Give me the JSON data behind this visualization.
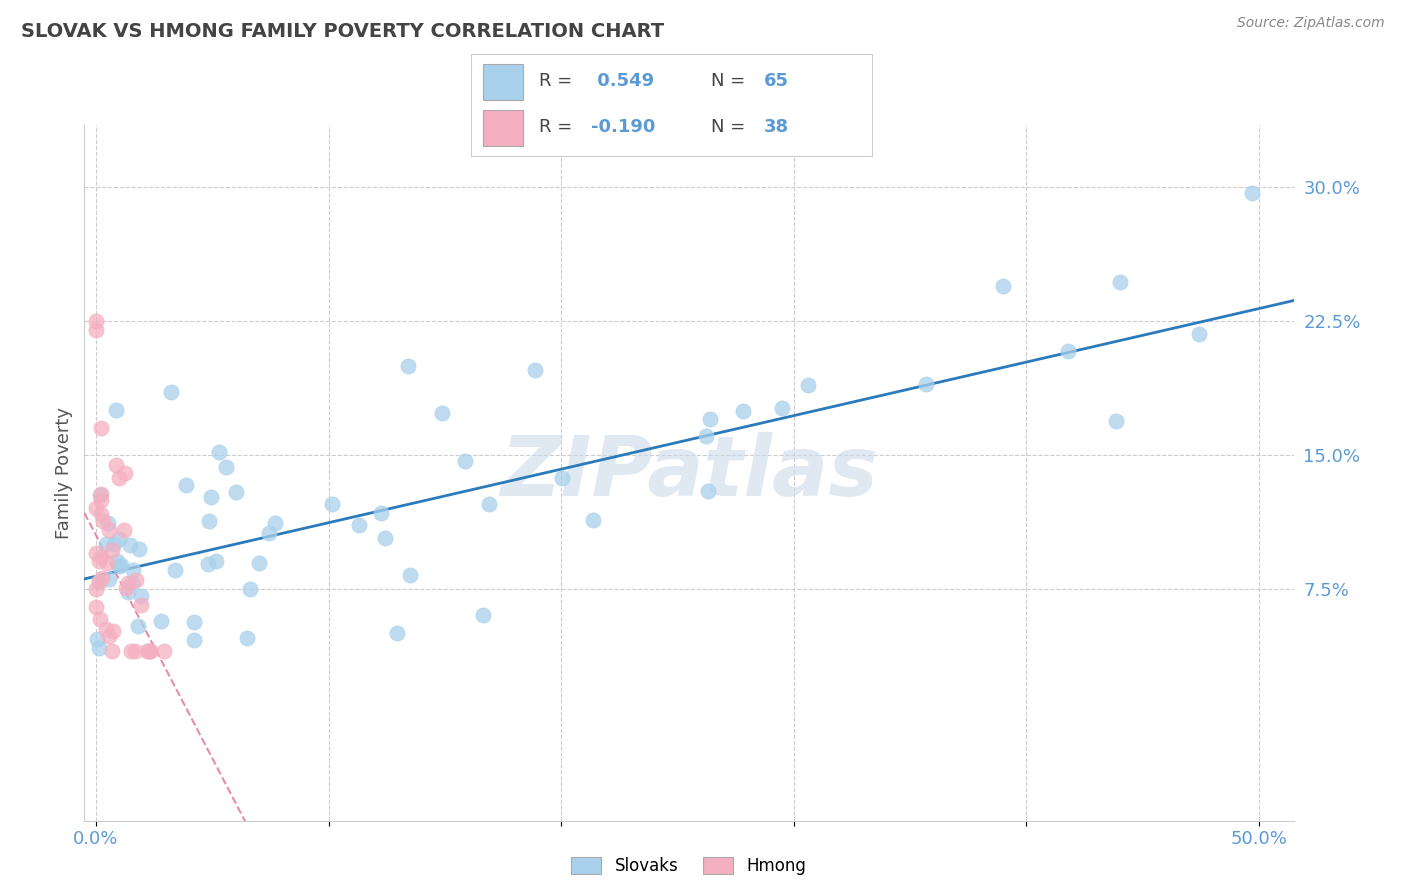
{
  "title": "SLOVAK VS HMONG FAMILY POVERTY CORRELATION CHART",
  "source": "Source: ZipAtlas.com",
  "ylabel": "Family Poverty",
  "x_ticks": [
    0.0,
    0.1,
    0.2,
    0.3,
    0.4,
    0.5
  ],
  "x_tick_labels": [
    "0.0%",
    "",
    "",
    "",
    "",
    "50.0%"
  ],
  "y_ticks": [
    0.075,
    0.15,
    0.225,
    0.3
  ],
  "y_tick_labels": [
    "7.5%",
    "15.0%",
    "22.5%",
    "30.0%"
  ],
  "xlim": [
    -0.005,
    0.515
  ],
  "ylim": [
    -0.055,
    0.335
  ],
  "slovak_color": "#a8d0eb",
  "hmong_color": "#f4afc0",
  "slovak_line_color": "#2b7bba",
  "hmong_line_color": "#e07090",
  "r_slovak": 0.549,
  "n_slovak": 65,
  "r_hmong": -0.19,
  "n_hmong": 38,
  "watermark": "ZIPatlas",
  "background_color": "#ffffff",
  "grid_color": "#cccccc",
  "title_color": "#444444",
  "label_color": "#5b9bd5",
  "legend_r_color": "#5b9bd5",
  "legend_n_color": "#5b9bd5"
}
